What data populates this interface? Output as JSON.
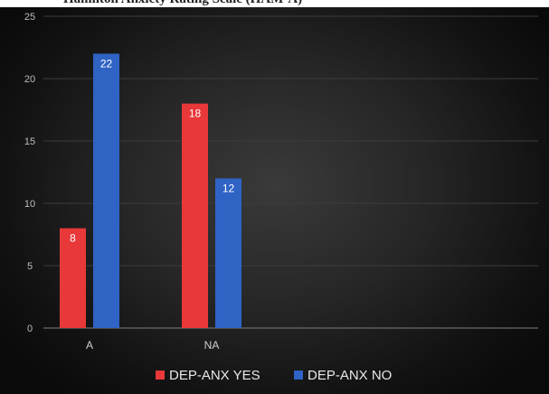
{
  "figure": {
    "title": "Hamilton Anxiety Rating Scale (HAM-A)"
  },
  "chart_data": {
    "type": "bar",
    "title": "",
    "xlabel": "",
    "ylabel": "",
    "categories": [
      "A",
      "NA"
    ],
    "ylim": [
      0,
      25
    ],
    "yticks": [
      "0",
      "5",
      "10",
      "15",
      "20",
      "25"
    ],
    "grid": true,
    "legend_position": "bottom",
    "series": [
      {
        "name": "DEP-ANX YES",
        "color": "#e8383a",
        "values": [
          8,
          18
        ]
      },
      {
        "name": "DEP-ANX NO",
        "color": "#2f63c4",
        "values": [
          22,
          12
        ]
      }
    ]
  }
}
